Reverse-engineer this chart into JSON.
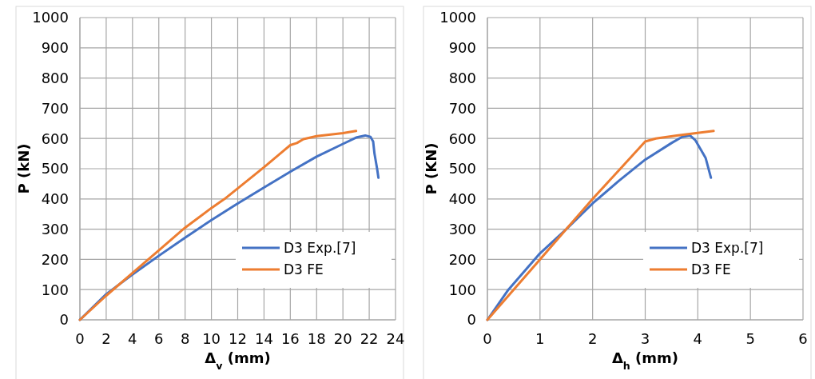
{
  "chart_data": [
    {
      "type": "line",
      "xlabel": "Δ$_{v}$ (mm)",
      "ylabel": "P (kN)",
      "xlim": [
        0,
        24
      ],
      "xticks": [
        0,
        2,
        4,
        6,
        8,
        10,
        12,
        14,
        16,
        18,
        20,
        22,
        24
      ],
      "ylim": [
        0,
        1000
      ],
      "yticks": [
        0,
        100,
        200,
        300,
        400,
        500,
        600,
        700,
        800,
        900,
        1000
      ],
      "grid": true,
      "legend": "bottom right",
      "marker": "none",
      "line_style": "solid",
      "series": [
        {
          "name": "D3 Exp.[7]",
          "color": "#4472c4",
          "x": [
            0,
            2,
            4,
            6,
            8,
            10,
            12,
            14,
            16,
            18,
            20,
            21,
            21.7,
            22.1,
            22.3,
            22.4,
            22.6,
            22.7
          ],
          "values": [
            0,
            85,
            150,
            212,
            272,
            330,
            385,
            438,
            490,
            540,
            582,
            603,
            610,
            605,
            590,
            550,
            500,
            470
          ]
        },
        {
          "name": "D3 FE",
          "color": "#ed7d31",
          "x": [
            0,
            2,
            4,
            6,
            8,
            10,
            11,
            12,
            14,
            15.5,
            16,
            16.5,
            17,
            18,
            20,
            21
          ],
          "values": [
            0,
            80,
            155,
            230,
            305,
            370,
            400,
            435,
            505,
            560,
            578,
            585,
            598,
            608,
            618,
            625
          ]
        }
      ]
    },
    {
      "type": "line",
      "xlabel": "Δ$_{h}$ (mm)",
      "ylabel": "P (KN)",
      "xlim": [
        0,
        6
      ],
      "xticks": [
        0,
        1,
        2,
        3,
        4,
        5,
        6
      ],
      "ylim": [
        0,
        1000
      ],
      "yticks": [
        0,
        100,
        200,
        300,
        400,
        500,
        600,
        700,
        800,
        900,
        1000
      ],
      "grid": true,
      "legend": "bottom right",
      "marker": "none",
      "line_style": "solid",
      "series": [
        {
          "name": "D3 Exp.[7]",
          "color": "#4472c4",
          "x": [
            0,
            0.2,
            0.4,
            0.7,
            1,
            1.5,
            2,
            2.5,
            3,
            3.5,
            3.7,
            3.85,
            3.95,
            4.1,
            4.15,
            4.25
          ],
          "values": [
            0,
            50,
            100,
            160,
            220,
            300,
            385,
            460,
            530,
            585,
            605,
            610,
            595,
            550,
            535,
            470
          ]
        },
        {
          "name": "D3 FE",
          "color": "#ed7d31",
          "x": [
            0,
            1,
            1.5,
            2,
            2.5,
            3,
            3.2,
            3.6,
            4.3
          ],
          "values": [
            0,
            200,
            300,
            400,
            495,
            590,
            600,
            610,
            625
          ]
        }
      ]
    }
  ]
}
